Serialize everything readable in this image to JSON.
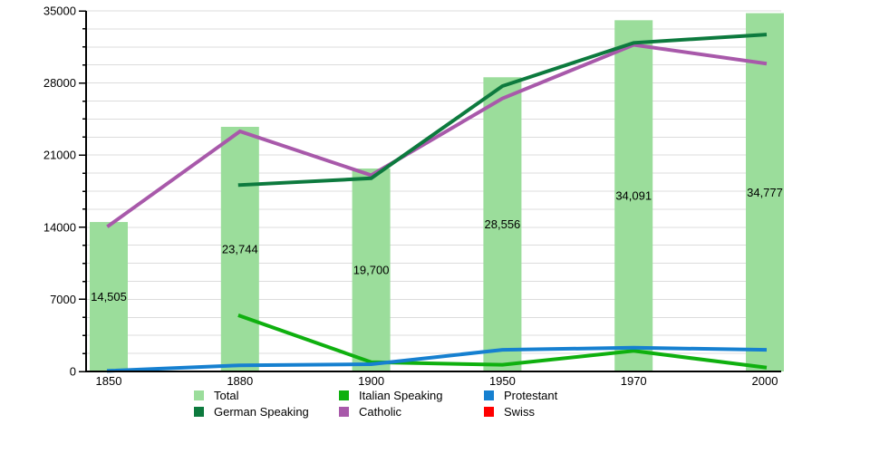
{
  "chart_data": {
    "type": "bar",
    "title": "",
    "categories": [
      "1850",
      "1880",
      "1900",
      "1950",
      "1970",
      "2000"
    ],
    "bars": {
      "name": "Total",
      "color": "#9bdd9b",
      "values": [
        14505,
        23744,
        19700,
        28556,
        34091,
        34777
      ],
      "labels": [
        "14,505",
        "23,744",
        "19,700",
        "28,556",
        "34,091",
        "34,777"
      ]
    },
    "series": [
      {
        "name": "Italian Speaking",
        "color": "#0fb00f",
        "values": [
          null,
          5400,
          900,
          650,
          2000,
          400
        ]
      },
      {
        "name": "Protestant",
        "color": "#1680d0",
        "values": [
          60,
          600,
          700,
          2100,
          2300,
          2100
        ]
      },
      {
        "name": "Catholic",
        "color": "#a859aa",
        "values": [
          14150,
          23300,
          19050,
          26500,
          31700,
          29900
        ]
      },
      {
        "name": "German Speaking",
        "color": "#0d7a3e",
        "values": [
          null,
          18100,
          18750,
          27700,
          31900,
          32700
        ]
      },
      {
        "name": "Swiss",
        "color": "#ff0000",
        "values": [
          null,
          null,
          null,
          null,
          null,
          null
        ]
      }
    ],
    "y_axis": {
      "min": 0,
      "max": 35000,
      "major_step": 7000,
      "minor_step": 1750,
      "tick_labels": [
        "0",
        "7000",
        "14000",
        "21000",
        "28000",
        "35000"
      ]
    },
    "x_axis": {
      "tick_labels": [
        "1850",
        "1880",
        "1900",
        "1950",
        "1970",
        "2000"
      ]
    },
    "grid": "horizontal-only",
    "legend_position": "bottom",
    "colors": {
      "grid": "#dcdcdc",
      "axis": "#000000",
      "text": "#000000",
      "background": "#ffffff"
    }
  },
  "legend": {
    "items": [
      {
        "label": "Total",
        "color": "#9bdd9b",
        "kind": "bar"
      },
      {
        "label": "Italian Speaking",
        "color": "#0fb00f",
        "kind": "line"
      },
      {
        "label": "Protestant",
        "color": "#1680d0",
        "kind": "line"
      },
      {
        "label": "German Speaking",
        "color": "#0d7a3e",
        "kind": "line"
      },
      {
        "label": "Catholic",
        "color": "#a859aa",
        "kind": "line"
      },
      {
        "label": "Swiss",
        "color": "#ff0000",
        "kind": "line"
      }
    ],
    "display_order": [
      0,
      1,
      2,
      3,
      4,
      5
    ]
  }
}
